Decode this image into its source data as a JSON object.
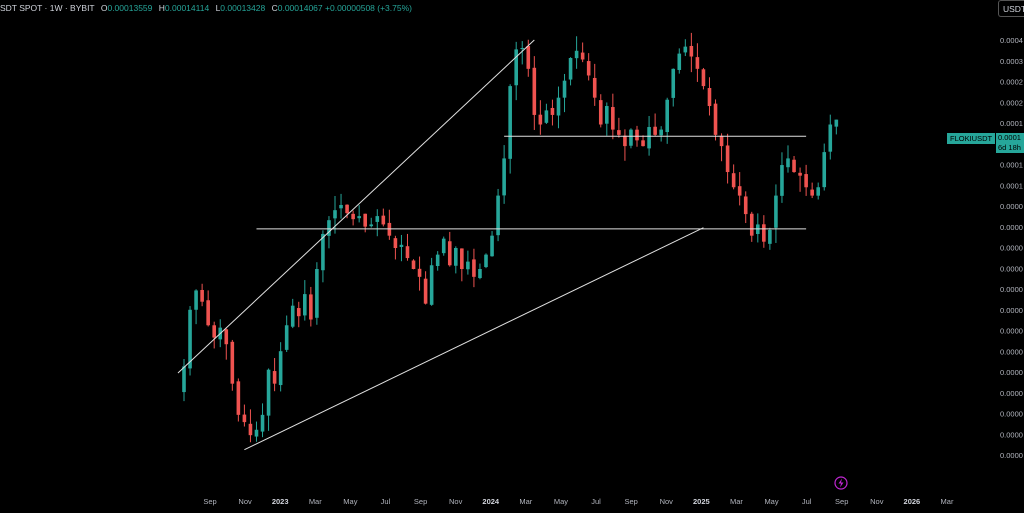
{
  "header": {
    "symbol": "SDT SPOT · 1W · BYBIT",
    "open_label": "O",
    "open": "0.00013559",
    "high_label": "H",
    "high": "0.00014114",
    "low_label": "L",
    "low": "0.00013428",
    "close_label": "C",
    "close": "0.00014067",
    "change": "+0.00000508 (+3.75%)"
  },
  "currency": "USDT",
  "symbol_tag": "FLOKIUSDT",
  "price_tag": {
    "price": "0.0001",
    "countdown": "6d 18h"
  },
  "colors": {
    "up": "#26a69a",
    "down": "#ef5350",
    "background": "#000000",
    "lines": "#e0e0e0"
  },
  "chart_data": {
    "type": "candlestick",
    "y_tick_labels": [
      "0.0004",
      "0.0003",
      "0.0002",
      "0.0002",
      "0.0001",
      "0.0001",
      "0.0001",
      "0.0001",
      "0.0000",
      "0.0000",
      "0.0000",
      "0.0000",
      "0.0000",
      "0.0000",
      "0.0000",
      "0.0000",
      "0.0000",
      "0.0000",
      "0.0000",
      "0.0000",
      "0.0000"
    ],
    "x_tick_labels": [
      {
        "label": "Sep",
        "bold": false
      },
      {
        "label": "Nov",
        "bold": false
      },
      {
        "label": "2023",
        "bold": true
      },
      {
        "label": "Mar",
        "bold": false
      },
      {
        "label": "May",
        "bold": false
      },
      {
        "label": "Jul",
        "bold": false
      },
      {
        "label": "Sep",
        "bold": false
      },
      {
        "label": "Nov",
        "bold": false
      },
      {
        "label": "2024",
        "bold": true
      },
      {
        "label": "Mar",
        "bold": false
      },
      {
        "label": "May",
        "bold": false
      },
      {
        "label": "Jul",
        "bold": false
      },
      {
        "label": "Sep",
        "bold": false
      },
      {
        "label": "Nov",
        "bold": false
      },
      {
        "label": "2025",
        "bold": true
      },
      {
        "label": "Mar",
        "bold": false
      },
      {
        "label": "May",
        "bold": false
      },
      {
        "label": "Jul",
        "bold": false
      },
      {
        "label": "Sep",
        "bold": false
      },
      {
        "label": "Nov",
        "bold": false
      },
      {
        "label": "2026",
        "bold": true
      },
      {
        "label": "Mar",
        "bold": false
      }
    ],
    "close_path": [
      [
        0,
        80
      ],
      [
        1,
        124
      ],
      [
        2,
        144
      ],
      [
        3,
        132
      ],
      [
        4,
        110
      ],
      [
        5,
        100
      ],
      [
        6,
        108
      ],
      [
        7,
        95
      ],
      [
        8,
        70
      ],
      [
        9,
        55
      ],
      [
        10,
        52
      ],
      [
        11,
        47
      ],
      [
        12,
        49
      ],
      [
        13,
        55
      ],
      [
        14,
        78
      ],
      [
        15,
        70
      ],
      [
        16,
        90
      ],
      [
        17,
        110
      ],
      [
        18,
        128
      ],
      [
        19,
        118
      ],
      [
        20,
        140
      ],
      [
        21,
        115
      ],
      [
        22,
        170
      ],
      [
        23,
        223
      ],
      [
        24,
        248
      ],
      [
        25,
        268
      ],
      [
        26,
        279
      ],
      [
        27,
        262
      ],
      [
        28,
        250
      ],
      [
        29,
        256
      ],
      [
        30,
        236
      ],
      [
        31,
        240
      ],
      [
        32,
        256
      ],
      [
        33,
        240
      ],
      [
        34,
        220
      ],
      [
        35,
        200
      ],
      [
        36,
        205
      ],
      [
        37,
        185
      ],
      [
        38,
        170
      ],
      [
        39,
        160
      ],
      [
        40,
        130
      ],
      [
        41,
        175
      ],
      [
        42,
        190
      ],
      [
        43,
        215
      ],
      [
        44,
        175
      ],
      [
        45,
        200
      ],
      [
        46,
        170
      ],
      [
        47,
        180
      ],
      [
        48,
        160
      ],
      [
        49,
        170
      ],
      [
        50,
        190
      ],
      [
        51,
        220
      ],
      [
        52,
        300
      ],
      [
        53,
        400
      ],
      [
        54,
        700
      ],
      [
        55,
        930
      ],
      [
        56,
        940
      ],
      [
        57,
        800
      ],
      [
        58,
        560
      ],
      [
        59,
        520
      ],
      [
        60,
        580
      ],
      [
        61,
        560
      ],
      [
        62,
        640
      ],
      [
        63,
        730
      ],
      [
        64,
        870
      ],
      [
        65,
        920
      ],
      [
        66,
        860
      ],
      [
        67,
        760
      ],
      [
        68,
        640
      ],
      [
        69,
        520
      ],
      [
        70,
        600
      ],
      [
        71,
        500
      ],
      [
        72,
        480
      ],
      [
        73,
        440
      ],
      [
        74,
        500
      ],
      [
        75,
        460
      ],
      [
        76,
        440
      ],
      [
        77,
        510
      ],
      [
        78,
        480
      ],
      [
        79,
        500
      ],
      [
        80,
        630
      ],
      [
        81,
        800
      ],
      [
        82,
        900
      ],
      [
        83,
        950
      ],
      [
        84,
        880
      ],
      [
        85,
        800
      ],
      [
        86,
        700
      ],
      [
        87,
        600
      ],
      [
        88,
        480
      ],
      [
        89,
        440
      ],
      [
        90,
        360
      ],
      [
        91,
        320
      ],
      [
        92,
        300
      ],
      [
        93,
        260
      ],
      [
        94,
        220
      ],
      [
        95,
        240
      ],
      [
        96,
        210
      ],
      [
        97,
        230
      ],
      [
        98,
        300
      ],
      [
        99,
        380
      ],
      [
        100,
        400
      ],
      [
        101,
        360
      ],
      [
        102,
        350
      ],
      [
        103,
        320
      ],
      [
        104,
        300
      ],
      [
        105,
        320
      ],
      [
        106,
        420
      ],
      [
        107,
        520
      ],
      [
        108,
        540
      ]
    ],
    "trend_lines": [
      {
        "name": "ascending-upper",
        "points": [
          [
            -1,
            76
          ],
          [
            58,
            1000
          ]
        ]
      },
      {
        "name": "ascending-support",
        "points": [
          [
            10,
            42
          ],
          [
            86,
            234
          ]
        ]
      },
      {
        "name": "horizontal-support",
        "points": [
          [
            12,
            232
          ],
          [
            103,
            232
          ]
        ]
      },
      {
        "name": "horizontal-resistance",
        "points": [
          [
            53,
            475
          ],
          [
            103,
            475
          ]
        ]
      }
    ]
  }
}
